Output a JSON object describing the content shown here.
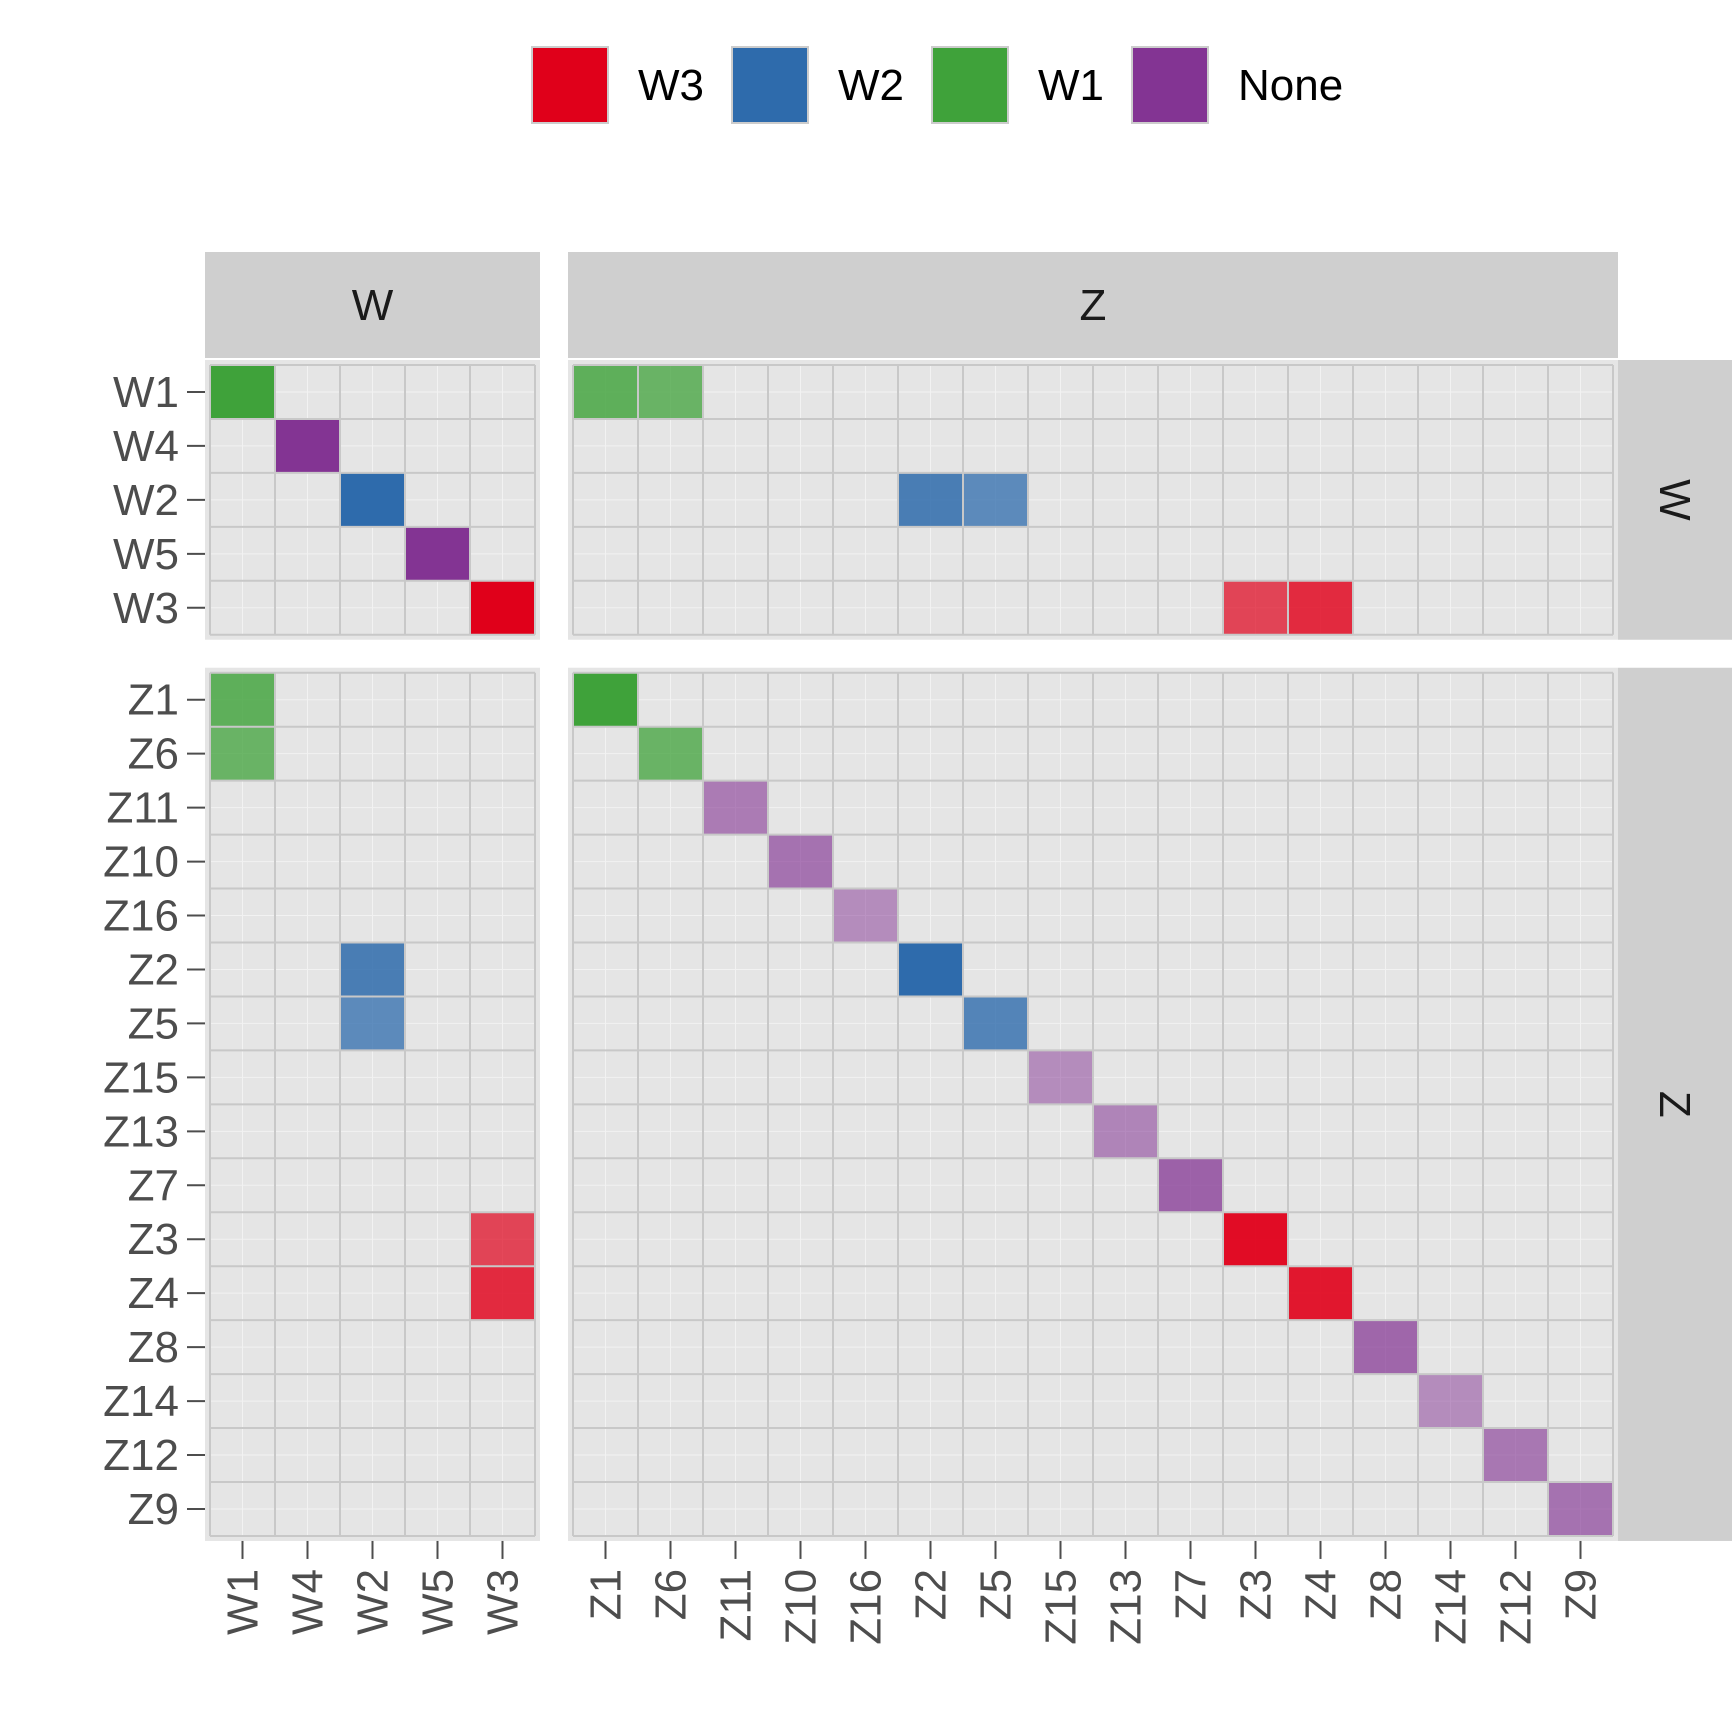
{
  "chart_data": {
    "type": "heatmap",
    "title": "",
    "xlabel": "",
    "ylabel": "",
    "legend": {
      "position": "top",
      "entries": [
        {
          "label": "W3",
          "color": "#E0001A"
        },
        {
          "label": "W2",
          "color": "#2E6BAC"
        },
        {
          "label": "W1",
          "color": "#3FA23A"
        },
        {
          "label": "None",
          "color": "#833493"
        }
      ]
    },
    "facets": {
      "columns": [
        {
          "label": "W",
          "categories": [
            "W1",
            "W4",
            "W2",
            "W5",
            "W3"
          ]
        },
        {
          "label": "Z",
          "categories": [
            "Z1",
            "Z6",
            "Z11",
            "Z10",
            "Z16",
            "Z2",
            "Z5",
            "Z15",
            "Z13",
            "Z7",
            "Z3",
            "Z4",
            "Z8",
            "Z14",
            "Z12",
            "Z9"
          ]
        }
      ],
      "rows": [
        {
          "label": "W",
          "categories": [
            "W1",
            "W4",
            "W2",
            "W5",
            "W3"
          ]
        },
        {
          "label": "Z",
          "categories": [
            "Z1",
            "Z6",
            "Z11",
            "Z10",
            "Z16",
            "Z2",
            "Z5",
            "Z15",
            "Z13",
            "Z7",
            "Z3",
            "Z4",
            "Z8",
            "Z14",
            "Z12",
            "Z9"
          ]
        }
      ]
    },
    "grid": true,
    "cells": [
      {
        "row": "W1",
        "col": "W1",
        "group": "W1",
        "opacity": 1.0
      },
      {
        "row": "W4",
        "col": "W4",
        "group": "None",
        "opacity": 1.0
      },
      {
        "row": "W2",
        "col": "W2",
        "group": "W2",
        "opacity": 1.0
      },
      {
        "row": "W5",
        "col": "W5",
        "group": "None",
        "opacity": 1.0
      },
      {
        "row": "W3",
        "col": "W3",
        "group": "W3",
        "opacity": 1.0
      },
      {
        "row": "W1",
        "col": "Z1",
        "group": "W1",
        "opacity": 0.82
      },
      {
        "row": "W1",
        "col": "Z6",
        "group": "W1",
        "opacity": 0.75
      },
      {
        "row": "W2",
        "col": "Z2",
        "group": "W2",
        "opacity": 0.85
      },
      {
        "row": "W2",
        "col": "Z5",
        "group": "W2",
        "opacity": 0.75
      },
      {
        "row": "W3",
        "col": "Z3",
        "group": "W3",
        "opacity": 0.7
      },
      {
        "row": "W3",
        "col": "Z4",
        "group": "W3",
        "opacity": 0.82
      },
      {
        "row": "Z1",
        "col": "W1",
        "group": "W1",
        "opacity": 0.82
      },
      {
        "row": "Z6",
        "col": "W1",
        "group": "W1",
        "opacity": 0.75
      },
      {
        "row": "Z2",
        "col": "W2",
        "group": "W2",
        "opacity": 0.85
      },
      {
        "row": "Z5",
        "col": "W2",
        "group": "W2",
        "opacity": 0.75
      },
      {
        "row": "Z3",
        "col": "W3",
        "group": "W3",
        "opacity": 0.7
      },
      {
        "row": "Z4",
        "col": "W3",
        "group": "W3",
        "opacity": 0.82
      },
      {
        "row": "Z1",
        "col": "Z1",
        "group": "W1",
        "opacity": 1.0
      },
      {
        "row": "Z6",
        "col": "Z6",
        "group": "W1",
        "opacity": 0.75
      },
      {
        "row": "Z11",
        "col": "Z11",
        "group": "None",
        "opacity": 0.6
      },
      {
        "row": "Z10",
        "col": "Z10",
        "group": "None",
        "opacity": 0.65
      },
      {
        "row": "Z16",
        "col": "Z16",
        "group": "None",
        "opacity": 0.5
      },
      {
        "row": "Z2",
        "col": "Z2",
        "group": "W2",
        "opacity": 1.0
      },
      {
        "row": "Z5",
        "col": "Z5",
        "group": "W2",
        "opacity": 0.8
      },
      {
        "row": "Z15",
        "col": "Z15",
        "group": "None",
        "opacity": 0.5
      },
      {
        "row": "Z13",
        "col": "Z13",
        "group": "None",
        "opacity": 0.55
      },
      {
        "row": "Z7",
        "col": "Z7",
        "group": "None",
        "opacity": 0.75
      },
      {
        "row": "Z3",
        "col": "Z3",
        "group": "W3",
        "opacity": 0.95
      },
      {
        "row": "Z4",
        "col": "Z4",
        "group": "W3",
        "opacity": 0.9
      },
      {
        "row": "Z8",
        "col": "Z8",
        "group": "None",
        "opacity": 0.72
      },
      {
        "row": "Z14",
        "col": "Z14",
        "group": "None",
        "opacity": 0.5
      },
      {
        "row": "Z12",
        "col": "Z12",
        "group": "None",
        "opacity": 0.62
      },
      {
        "row": "Z9",
        "col": "Z9",
        "group": "None",
        "opacity": 0.65
      }
    ]
  }
}
